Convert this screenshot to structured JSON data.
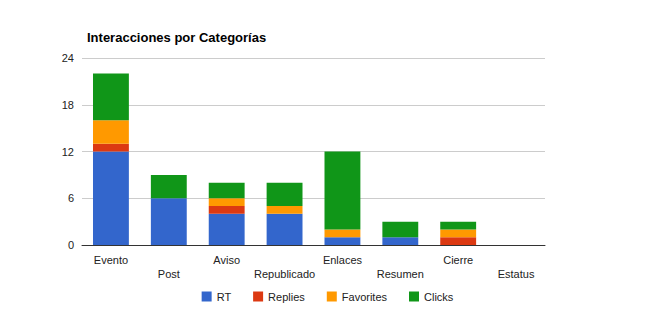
{
  "chart_data": {
    "type": "bar",
    "title": "Interacciones por Categorías",
    "categories": [
      "Evento",
      "Post",
      "Aviso",
      "Republicado",
      "Enlaces",
      "Resumen",
      "Cierre",
      "Estatus"
    ],
    "series": [
      {
        "name": "RT",
        "color": "#3366cc",
        "values": [
          12,
          6,
          4,
          4,
          1,
          1,
          0,
          0
        ]
      },
      {
        "name": "Replies",
        "color": "#dc3912",
        "values": [
          1,
          0,
          1,
          0,
          0,
          0,
          1,
          0
        ]
      },
      {
        "name": "Favorites",
        "color": "#ff9900",
        "values": [
          3,
          0,
          1,
          1,
          1,
          0,
          1,
          0
        ]
      },
      {
        "name": "Clicks",
        "color": "#109618",
        "values": [
          6,
          3,
          2,
          3,
          10,
          2,
          1,
          0
        ]
      }
    ],
    "ylim": [
      0,
      24
    ],
    "yticks": [
      0,
      6,
      12,
      18,
      24
    ],
    "stacked": true,
    "grid": true,
    "legend": "bottom"
  }
}
